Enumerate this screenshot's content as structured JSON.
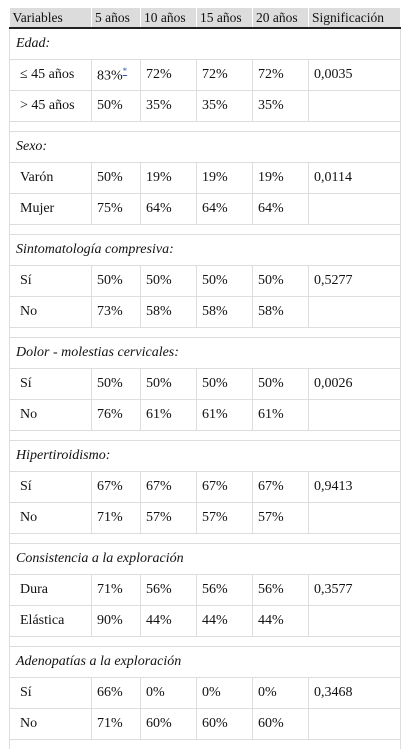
{
  "table": {
    "header": [
      "Variables",
      "5 años",
      "10 años",
      "15 años",
      "20 años",
      "Significación"
    ],
    "groups": [
      {
        "title": "Edad:",
        "rows": [
          {
            "label": "≤ 45 años",
            "values": [
              "83%",
              "72%",
              "72%",
              "72%"
            ],
            "footnote": "*",
            "significance": "0,0035"
          },
          {
            "label": "> 45 años",
            "values": [
              "50%",
              "35%",
              "35%",
              "35%"
            ]
          }
        ]
      },
      {
        "title": "Sexo:",
        "rows": [
          {
            "label": "Varón",
            "values": [
              "50%",
              "19%",
              "19%",
              "19%"
            ],
            "significance": "0,0114"
          },
          {
            "label": "Mujer",
            "values": [
              "75%",
              "64%",
              "64%",
              "64%"
            ]
          }
        ]
      },
      {
        "title": "Sintomatología compresiva:",
        "rows": [
          {
            "label": "Sí",
            "values": [
              "50%",
              "50%",
              "50%",
              "50%"
            ],
            "significance": "0,5277"
          },
          {
            "label": "No",
            "values": [
              "73%",
              "58%",
              "58%",
              "58%"
            ]
          }
        ]
      },
      {
        "title": "Dolor - molestias cervicales:",
        "rows": [
          {
            "label": "Sí",
            "values": [
              "50%",
              "50%",
              "50%",
              "50%"
            ],
            "significance": "0,0026"
          },
          {
            "label": "No",
            "values": [
              "76%",
              "61%",
              "61%",
              "61%"
            ]
          }
        ]
      },
      {
        "title": "Hipertiroidismo:",
        "rows": [
          {
            "label": "Sí",
            "values": [
              "67%",
              "67%",
              "67%",
              "67%"
            ],
            "significance": "0,9413"
          },
          {
            "label": "No",
            "values": [
              "71%",
              "57%",
              "57%",
              "57%"
            ]
          }
        ]
      },
      {
        "title": "Consistencia a la exploración",
        "rows": [
          {
            "label": "Dura",
            "values": [
              "71%",
              "56%",
              "56%",
              "56%"
            ],
            "significance": "0,3577"
          },
          {
            "label": "Elástica",
            "values": [
              "90%",
              "44%",
              "44%",
              "44%"
            ]
          }
        ]
      },
      {
        "title": "Adenopatías a la exploración",
        "rows": [
          {
            "label": "Sí",
            "values": [
              "66%",
              "0%",
              "0%",
              "0%"
            ],
            "significance": "0,3468"
          },
          {
            "label": "No",
            "values": [
              "71%",
              "60%",
              "60%",
              "60%"
            ]
          }
        ]
      }
    ]
  }
}
